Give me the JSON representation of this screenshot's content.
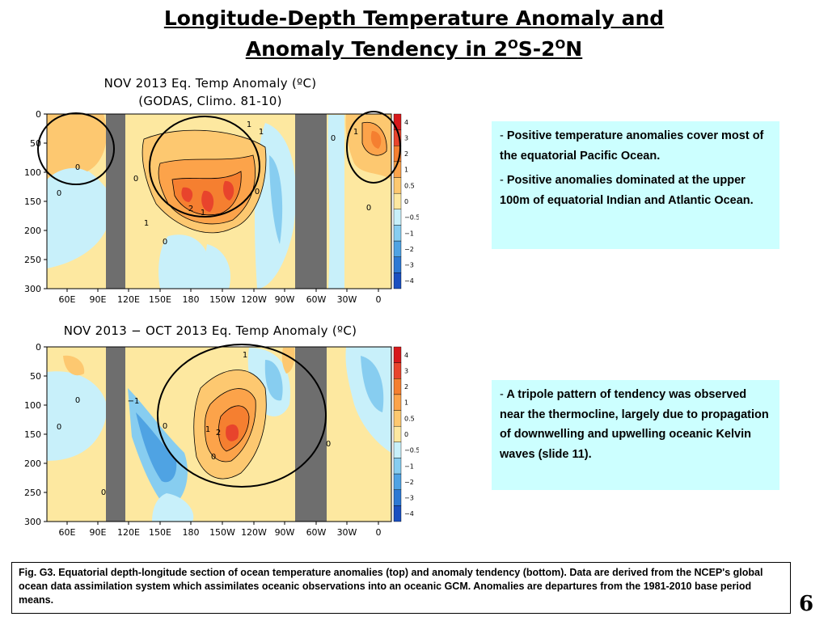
{
  "slide": {
    "title_line1": "Longitude-Depth Temperature Anomaly and",
    "title_line2_a": "Anomaly Tendency in 2",
    "title_sup1": "O",
    "title_line2_b": "S-2",
    "title_sup2": "O",
    "title_line2_c": "N",
    "slide_number": "6",
    "caption": "Fig. G3. Equatorial depth-longitude section of ocean temperature anomalies (top) and anomaly tendency (bottom). Data are derived from the NCEP's global ocean data assimilation system which assimilates oceanic observations into an oceanic GCM. Anomalies are departures from the 1981-2010 base period means."
  },
  "notes": {
    "box1_item1": "Positive temperature anomalies cover most of the equatorial Pacific Ocean.",
    "box1_item2": "Positive  anomalies dominated at the upper 100m of  equatorial Indian and Atlantic Ocean.",
    "box2_item1": "A tripole pattern of tendency was observed near the thermocline, largely due to propagation of downwelling and upwelling oceanic Kelvin waves (slide 11).",
    "bullet": "-"
  },
  "chart_data": [
    {
      "type": "heatmap",
      "title": "NOV 2013 Eq. Temp Anomaly (ºC)",
      "subtitle": "(GODAS,   Climo. 81-10)",
      "x_tick_labels": [
        "60E",
        "90E",
        "120E",
        "150E",
        "180",
        "150W",
        "120W",
        "90W",
        "60W",
        "30W",
        "0"
      ],
      "y_tick_labels": [
        "0",
        "50",
        "100",
        "150",
        "200",
        "250",
        "300"
      ],
      "ylim": [
        0,
        300
      ],
      "colorbar_levels": [
        "4",
        "3",
        "2",
        "1",
        "0.5",
        "0",
        "−0.5",
        "−1",
        "−2",
        "−3",
        "−4"
      ],
      "colorbar_colors": [
        "#d7191c",
        "#e8442c",
        "#f57f30",
        "#fca34a",
        "#fdc870",
        "#fde8a0",
        "#c8f0fa",
        "#87cdf0",
        "#4fa3e3",
        "#2d79d4",
        "#1a4fc0"
      ],
      "contour_labels": [
        "0",
        "0",
        "0",
        "0",
        "0",
        "0",
        "0",
        "1",
        "1",
        "1",
        "1",
        "1",
        "2"
      ],
      "land_mask_color": "#6e6e6e",
      "highlight_circles": 3
    },
    {
      "type": "heatmap",
      "title": "NOV 2013 − OCT 2013 Eq. Temp Anomaly (ºC)",
      "x_tick_labels": [
        "60E",
        "90E",
        "120E",
        "150E",
        "180",
        "150W",
        "120W",
        "90W",
        "60W",
        "30W",
        "0"
      ],
      "y_tick_labels": [
        "0",
        "50",
        "100",
        "150",
        "200",
        "250",
        "300"
      ],
      "ylim": [
        0,
        300
      ],
      "colorbar_levels": [
        "4",
        "3",
        "2",
        "1",
        "0.5",
        "0",
        "−0.5",
        "−1",
        "−2",
        "−3",
        "−4"
      ],
      "colorbar_colors": [
        "#d7191c",
        "#e8442c",
        "#f57f30",
        "#fca34a",
        "#fdc870",
        "#fde8a0",
        "#c8f0fa",
        "#87cdf0",
        "#4fa3e3",
        "#2d79d4",
        "#1a4fc0"
      ],
      "contour_labels": [
        "0",
        "0",
        "0",
        "0",
        "0",
        "0",
        "1",
        "1",
        "2",
        "−1"
      ],
      "land_mask_color": "#6e6e6e",
      "highlight_circles": 1
    }
  ]
}
